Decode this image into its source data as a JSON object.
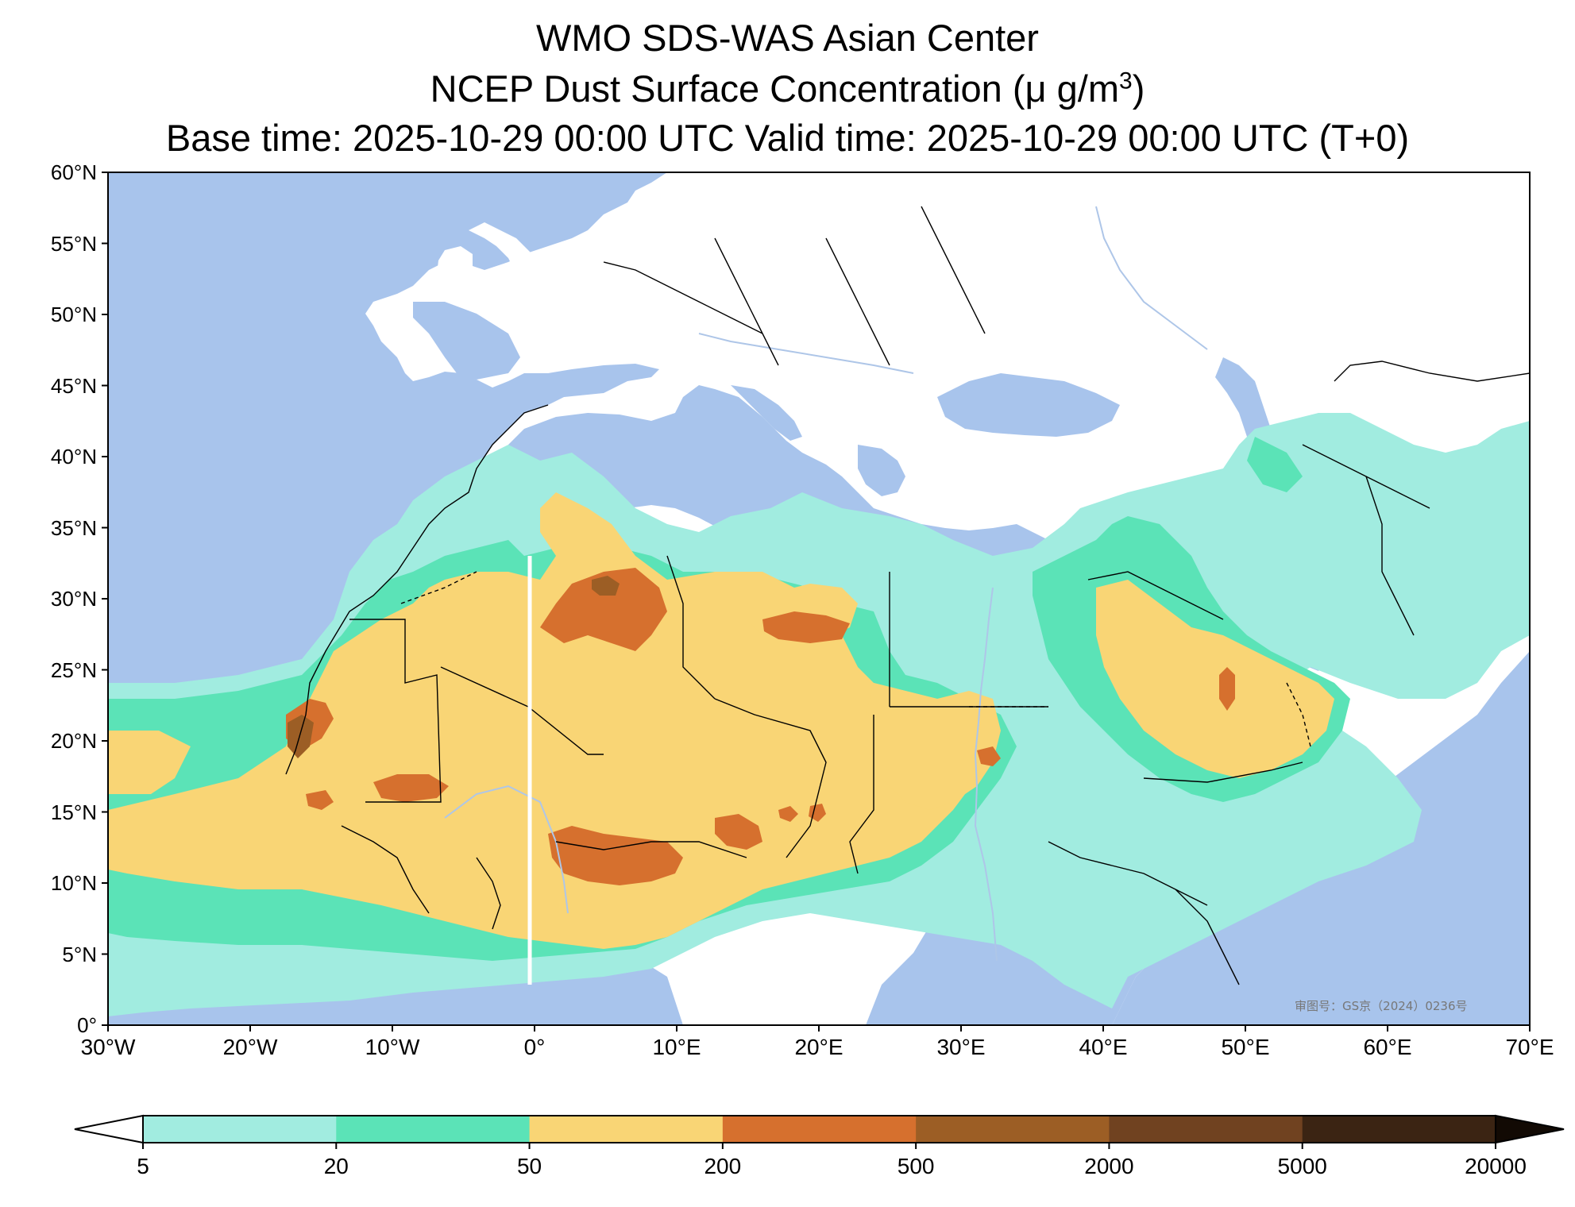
{
  "title": {
    "line1": "WMO SDS-WAS Asian Center",
    "line2_prefix": "NCEP Dust Surface Concentration (",
    "line2_unit": "μ g/m",
    "line2_sup": "3",
    "line2_suffix": ")",
    "line3": "Base time: 2025-10-29 00:00 UTC Valid time: 2025-10-29 00:00 UTC (T+0)"
  },
  "map": {
    "lat_labels": [
      "60°N",
      "55°N",
      "50°N",
      "45°N",
      "40°N",
      "35°N",
      "30°N",
      "25°N",
      "20°N",
      "15°N",
      "10°N",
      "5°N",
      "0°"
    ],
    "lon_labels": [
      "30°W",
      "20°W",
      "10°W",
      "0°",
      "10°E",
      "20°E",
      "30°E",
      "40°E",
      "50°E",
      "60°E",
      "70°E"
    ],
    "extent": {
      "lon_min": -30,
      "lon_max": 70,
      "lat_min": 0,
      "lat_max": 60
    },
    "watermark": "审图号：GS京（2024）0236号",
    "colors": {
      "ocean": "#a8c4ec",
      "land": "#ffffff",
      "river": "#aec6e8",
      "border": "#000000"
    }
  },
  "colorbar": {
    "labels": [
      "5",
      "20",
      "50",
      "200",
      "500",
      "2000",
      "5000",
      "20000"
    ],
    "colors": [
      "#a1ece0",
      "#5be3b7",
      "#f9d575",
      "#d6702e",
      "#9c5e25",
      "#704220",
      "#3b2413"
    ],
    "extend": "both"
  }
}
